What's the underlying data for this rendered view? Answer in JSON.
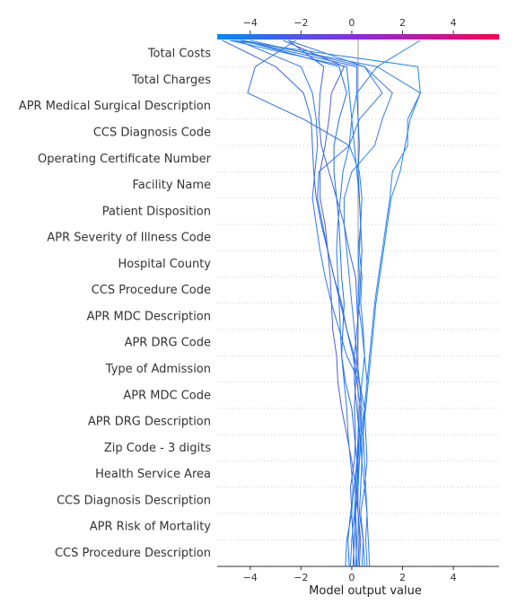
{
  "chart_data": {
    "type": "line",
    "subtype": "decision-plot",
    "title": "",
    "xlabel": "Model output value",
    "ylabel": "",
    "xlim": [
      -5.3,
      5.8
    ],
    "xticks": [
      -4,
      -2,
      0,
      2,
      4
    ],
    "base_value": 0.25,
    "colorbar": {
      "range": [
        -5.3,
        5.8
      ],
      "colors": [
        "#008bfb",
        "#8a2be2",
        "#ff0051"
      ],
      "position": "top"
    },
    "grid": "dotted horizontal row lines",
    "features": [
      "Total Costs",
      "Total Charges",
      "APR Medical Surgical Description",
      "CCS Diagnosis Code",
      "Operating Certificate Number",
      "Facility Name",
      "Patient Disposition",
      "APR Severity of Illness Code",
      "Hospital County",
      "CCS Procedure Code",
      "APR MDC Description",
      "APR DRG Code",
      "Type of Admission",
      "APR MDC Code",
      "APR DRG Description",
      "Zip Code - 3 digits",
      "Health Service Area",
      "CCS Diagnosis Description",
      "APR Risk of Mortality",
      "CCS Procedure Description"
    ],
    "series": [
      {
        "color": "#1e7af0",
        "values": [
          0.5,
          0.45,
          0.3,
          0.35,
          0.4,
          0.35,
          0.5,
          0.6,
          0.5,
          0.4,
          0.25,
          0.3,
          0.25,
          0.35,
          0.3,
          0.2,
          0.1,
          0.0,
          -0.1,
          -0.2,
          -4.8
        ]
      },
      {
        "color": "#2a6ee8",
        "values": [
          0.15,
          0.2,
          0.15,
          0.2,
          0.25,
          0.3,
          0.2,
          0.1,
          0.1,
          0.2,
          0.3,
          0.35,
          0.4,
          0.35,
          0.3,
          0.25,
          0.3,
          0.25,
          0.2,
          0.2,
          -4.4
        ]
      },
      {
        "color": "#3c63e0",
        "values": [
          0.1,
          0.05,
          0.0,
          -0.05,
          0.1,
          0.15,
          0.1,
          0.15,
          0.2,
          0.25,
          0.2,
          0.15,
          -0.1,
          -0.3,
          -0.6,
          -0.9,
          -1.2,
          -1.3,
          -1.25,
          -1.1,
          -2.5
        ]
      },
      {
        "color": "#2f76ee",
        "values": [
          0.4,
          0.45,
          0.35,
          0.5,
          0.6,
          0.55,
          0.5,
          0.3,
          -0.2,
          -0.5,
          -0.8,
          -1.05,
          -1.25,
          -1.4,
          -1.55,
          -1.45,
          -1.35,
          -1.4,
          -1.55,
          -2.0,
          -4.5
        ]
      },
      {
        "color": "#1f82f5",
        "values": [
          -0.05,
          0.0,
          0.1,
          0.15,
          0.2,
          0.25,
          0.3,
          0.4,
          0.5,
          0.45,
          0.35,
          0.4,
          0.3,
          0.35,
          0.4,
          0.3,
          -0.1,
          0.0,
          0.2,
          1.0,
          2.7
        ]
      },
      {
        "color": "#2872ea",
        "values": [
          0.25,
          0.3,
          0.25,
          0.2,
          0.3,
          0.35,
          0.4,
          0.3,
          0.1,
          -0.2,
          -0.4,
          -0.7,
          -0.95,
          -1.15,
          -1.35,
          -1.3,
          -0.1,
          -1.9,
          -4.1,
          -3.8,
          -2.2
        ]
      },
      {
        "color": "#2d7ff0",
        "values": [
          0.7,
          0.65,
          0.6,
          0.55,
          0.5,
          0.45,
          0.5,
          0.6,
          0.7,
          0.8,
          0.9,
          1.05,
          1.2,
          1.35,
          1.5,
          1.6,
          2.2,
          2.2,
          2.7,
          1.0,
          -4.3
        ]
      },
      {
        "color": "#367aec",
        "values": [
          0.6,
          0.55,
          0.6,
          0.5,
          0.4,
          0.45,
          0.5,
          0.3,
          0.2,
          0.1,
          0.0,
          -0.1,
          -0.2,
          -0.3,
          -0.3,
          0.0,
          0.9,
          1.2,
          1.6,
          0.5,
          -4.0
        ]
      },
      {
        "color": "#4a5fe0",
        "values": [
          0.3,
          0.35,
          0.25,
          0.15,
          0.0,
          -0.2,
          -0.4,
          -0.55,
          -0.6,
          -0.75,
          -0.8,
          -0.85,
          -0.95,
          -1.05,
          -1.25,
          -1.25,
          -1.05,
          -0.9,
          -0.8,
          -0.3,
          -2.7
        ]
      },
      {
        "color": "#2a79ee",
        "values": [
          -0.25,
          -0.2,
          0.0,
          0.05,
          -0.05,
          -0.15,
          -0.2,
          -0.3,
          -0.4,
          -0.45,
          -0.5,
          -0.55,
          -0.6,
          -0.55,
          -0.45,
          -0.35,
          -0.1,
          0.3,
          1.2,
          0.5,
          -2.5
        ]
      },
      {
        "color": "#2070ec",
        "values": [
          -0.1,
          -0.15,
          -0.05,
          0.1,
          0.2,
          0.1,
          0.0,
          -0.25,
          -0.4,
          -0.35,
          -0.3,
          -0.4,
          -0.45,
          -0.5,
          -0.6,
          -0.7,
          -0.7,
          -0.5,
          -0.2,
          -0.5,
          -4.3
        ]
      },
      {
        "color": "#3468e6",
        "values": [
          0.05,
          0.1,
          0.15,
          0.25,
          0.2,
          0.3,
          0.35,
          0.2,
          0.05,
          -0.2,
          -0.45,
          -0.7,
          -0.95,
          -1.2,
          -1.4,
          -1.5,
          -1.55,
          -1.6,
          -1.9,
          -3.0,
          -5.1
        ]
      },
      {
        "color": "#1f86f6",
        "values": [
          0.2,
          0.15,
          0.1,
          0.25,
          0.3,
          0.4,
          0.55,
          0.65,
          0.75,
          0.85,
          0.95,
          1.1,
          1.25,
          1.4,
          1.55,
          1.9,
          2.1,
          2.3,
          2.7,
          2.6,
          -4.7
        ]
      }
    ]
  }
}
